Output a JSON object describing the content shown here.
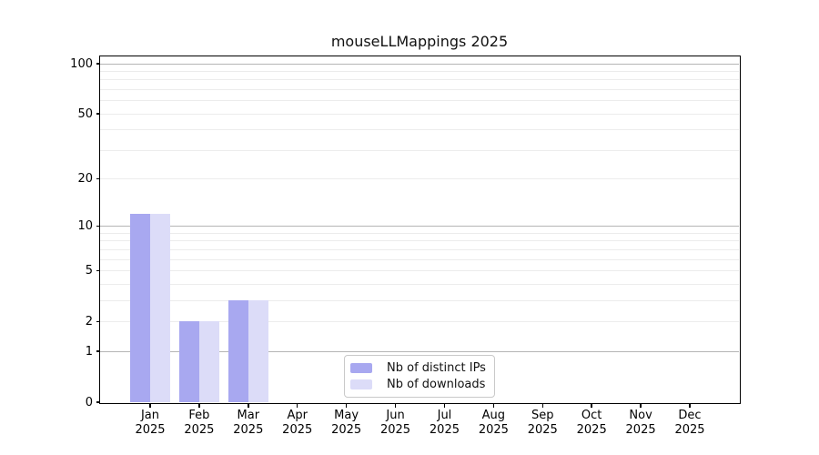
{
  "chart_data": {
    "type": "bar",
    "title": "mouseLLMappings 2025",
    "categories": [
      "Jan",
      "Feb",
      "Mar",
      "Apr",
      "May",
      "Jun",
      "Jul",
      "Aug",
      "Sep",
      "Oct",
      "Nov",
      "Dec"
    ],
    "category_year": "2025",
    "series": [
      {
        "name": "Nb of distinct IPs",
        "color": "#a8a8f0",
        "values": [
          12,
          2,
          3,
          0,
          0,
          0,
          0,
          0,
          0,
          0,
          0,
          0
        ]
      },
      {
        "name": "Nb of downloads",
        "color": "#dcdcf8",
        "values": [
          12,
          2,
          3,
          0,
          0,
          0,
          0,
          0,
          0,
          0,
          0,
          0
        ]
      }
    ],
    "yscale": "log1p",
    "ylim": [
      0,
      110
    ],
    "y_ticks": [
      0,
      1,
      2,
      5,
      10,
      20,
      50,
      100
    ],
    "y_major_gridlines": [
      1,
      10,
      100
    ],
    "y_minor_gridlines": [
      2,
      3,
      4,
      5,
      6,
      7,
      8,
      9,
      20,
      30,
      40,
      50,
      60,
      70,
      80,
      90
    ],
    "grid": true,
    "legend": {
      "position": "lower center, inside axes"
    },
    "colors": {
      "bar_ips": "#a8a8f0",
      "bar_downloads": "#dcdcf8",
      "spine": "#000000",
      "grid_major": "#b5b5b5",
      "grid_minor": "#ececec",
      "legend_border": "#c9c9c9",
      "text": "#111111",
      "background": "#ffffff"
    }
  }
}
